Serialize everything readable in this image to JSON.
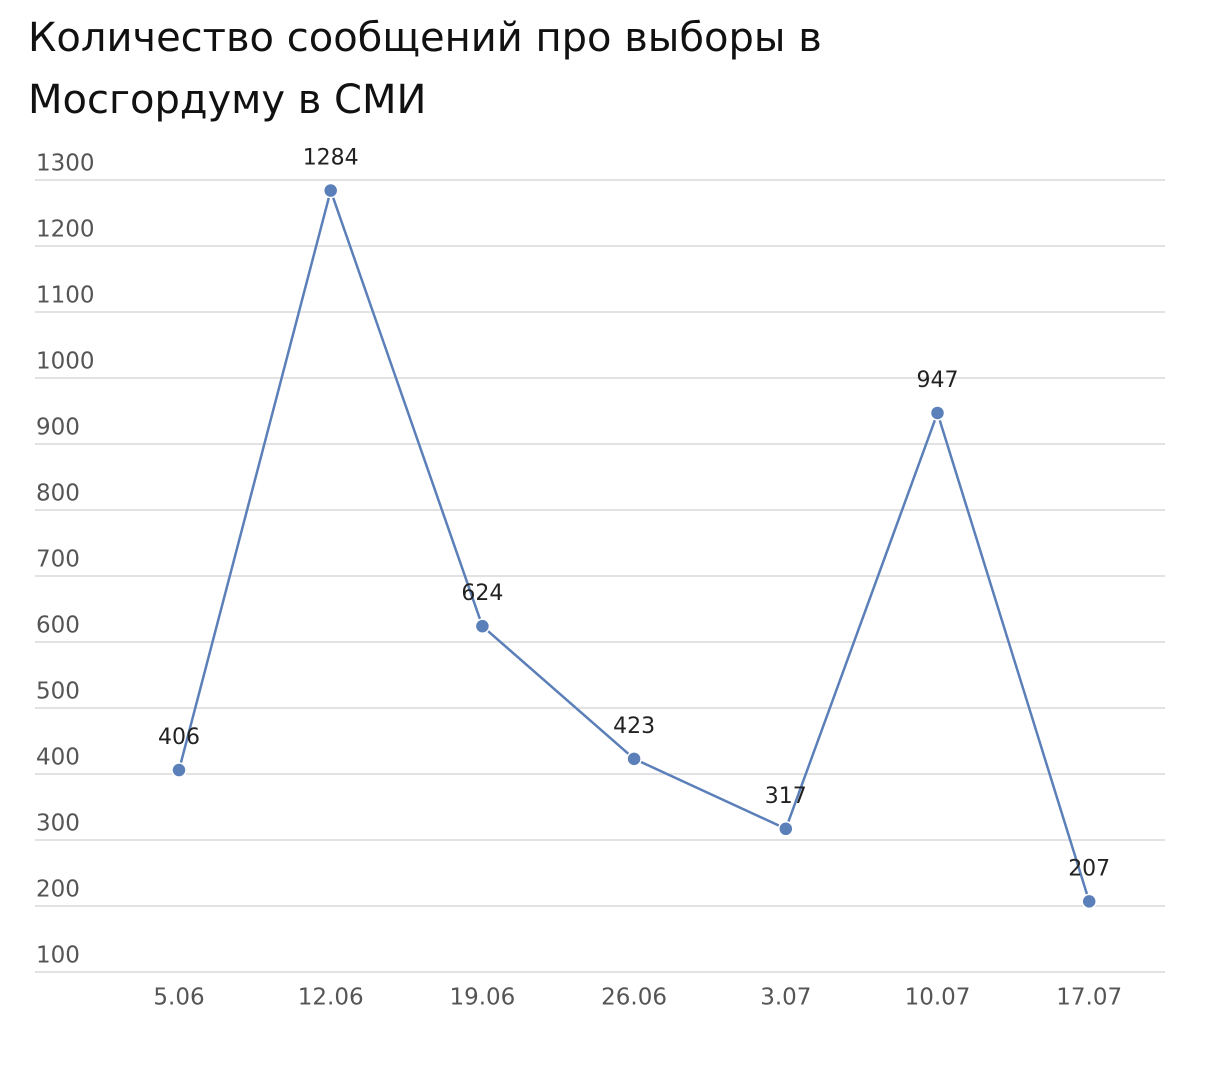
{
  "chart_data": {
    "type": "line",
    "title": [
      "Количество сообщений про выборы в",
      "Мосгордуму в СМИ"
    ],
    "categories": [
      "5.06",
      "12.06",
      "19.06",
      "26.06",
      "3.07",
      "10.07",
      "17.07"
    ],
    "series": [
      {
        "color": "#5b7fb8",
        "values": [
          406,
          1284,
          624,
          423,
          317,
          947,
          207
        ]
      }
    ],
    "ylim": [
      100,
      1300
    ],
    "yticks": [
      100,
      200,
      300,
      400,
      500,
      600,
      700,
      800,
      900,
      1000,
      1100,
      1200,
      1300
    ],
    "grid": true
  }
}
